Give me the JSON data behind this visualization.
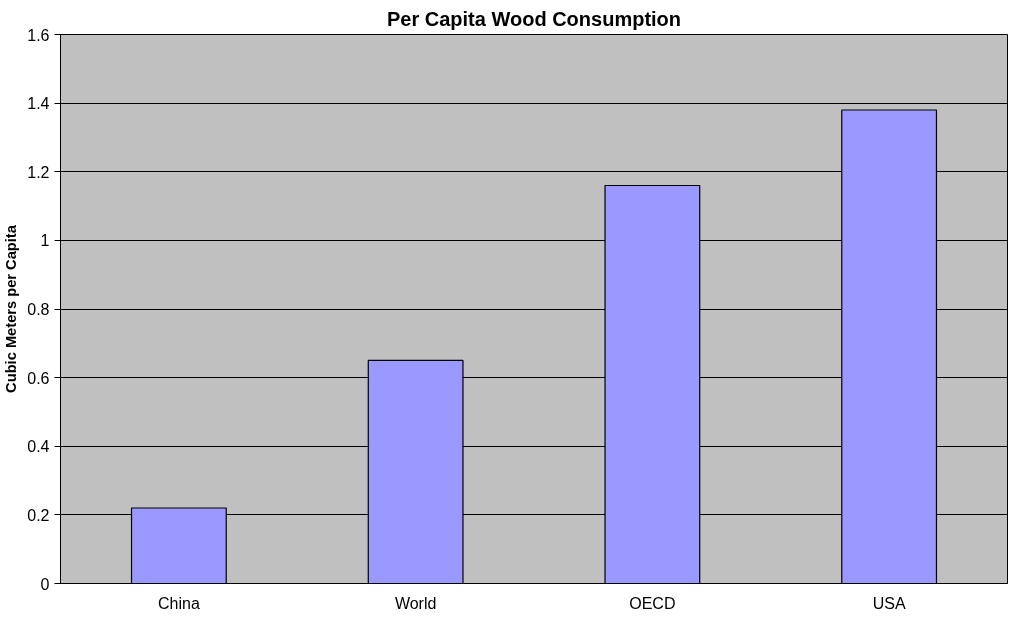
{
  "chart_data": {
    "type": "bar",
    "title": "Per Capita Wood Consumption",
    "ylabel": "Cubic Meters per Capita",
    "categories": [
      "China",
      "World",
      "OECD",
      "USA"
    ],
    "values": [
      0.22,
      0.65,
      1.16,
      1.38
    ],
    "color": "#9999ff",
    "ylim": [
      0,
      1.6
    ],
    "yticks": [
      0,
      0.2,
      0.4,
      0.6,
      0.8,
      1,
      1.2,
      1.4,
      1.6
    ],
    "grid": "y"
  }
}
